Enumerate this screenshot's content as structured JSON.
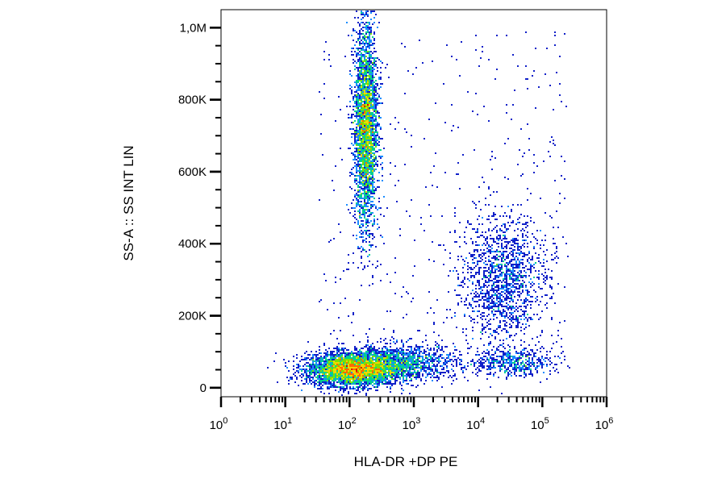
{
  "chart_data": {
    "type": "scatter",
    "style": "flow-cytometry density dot plot (blue-cyan-green-yellow-red density colormap)",
    "xlabel": "HLA-DR +DP PE",
    "ylabel": "SS-A :: SS INT LIN",
    "x_scale": "log",
    "y_scale": "linear",
    "xlim": [
      1,
      1000000
    ],
    "ylim": [
      -25000,
      1050000
    ],
    "x_ticks": [
      {
        "base": "10",
        "exp": "0",
        "value": 1
      },
      {
        "base": "10",
        "exp": "1",
        "value": 10
      },
      {
        "base": "10",
        "exp": "2",
        "value": 100
      },
      {
        "base": "10",
        "exp": "3",
        "value": 1000
      },
      {
        "base": "10",
        "exp": "4",
        "value": 10000
      },
      {
        "base": "10",
        "exp": "5",
        "value": 100000
      },
      {
        "base": "10",
        "exp": "6",
        "value": 1000000
      }
    ],
    "y_ticks": [
      {
        "label": "0",
        "value": 0
      },
      {
        "label": "200K",
        "value": 200000
      },
      {
        "label": "400K",
        "value": 400000
      },
      {
        "label": "600K",
        "value": 600000
      },
      {
        "label": "800K",
        "value": 800000
      },
      {
        "label": "1,0M",
        "value": 1000000
      }
    ],
    "populations": [
      {
        "id": "lymphocytes",
        "x_center": 110,
        "y_center": 50000,
        "x_log_spread": 0.35,
        "y_spread": 22000,
        "count": 4200,
        "peak_density": "high"
      },
      {
        "id": "lymph-tail",
        "x_center": 600,
        "y_center": 70000,
        "x_log_spread": 0.45,
        "y_spread": 25000,
        "count": 1500,
        "peak_density": "medium"
      },
      {
        "id": "granulocytes",
        "x_center": 180,
        "y_center": 720000,
        "x_log_spread": 0.09,
        "y_spread": 140000,
        "count": 4200,
        "peak_density": "high"
      },
      {
        "id": "monocytes",
        "x_center": 25000,
        "y_center": 300000,
        "x_log_spread": 0.33,
        "y_spread": 90000,
        "count": 1500,
        "peak_density": "low"
      },
      {
        "id": "hla-dr-high-low-ss",
        "x_center": 35000,
        "y_center": 70000,
        "x_log_spread": 0.3,
        "y_spread": 18000,
        "count": 500,
        "peak_density": "medium"
      }
    ]
  }
}
